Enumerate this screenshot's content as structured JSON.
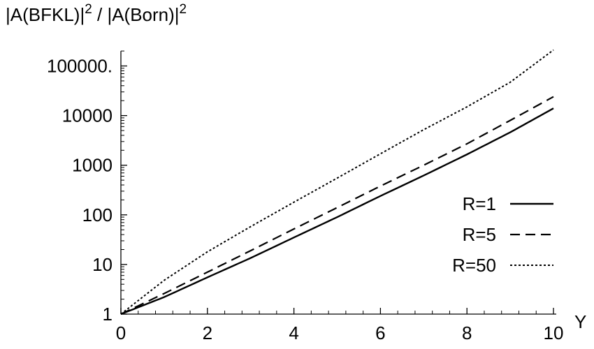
{
  "chart_data": {
    "type": "line",
    "ylabel": {
      "part1": "|A(BFKL)|",
      "exp1": "2",
      "part2": " / |A(Born)|",
      "exp2": "2"
    },
    "xlabel": "Y",
    "x_scale": "linear",
    "y_scale": "log",
    "xlim": [
      0,
      10
    ],
    "ylim": [
      1,
      200000
    ],
    "x_ticks": [
      {
        "value": 0,
        "label": "0"
      },
      {
        "value": 2,
        "label": "2"
      },
      {
        "value": 4,
        "label": "4"
      },
      {
        "value": 6,
        "label": "6"
      },
      {
        "value": 8,
        "label": "8"
      },
      {
        "value": 10,
        "label": "10"
      }
    ],
    "y_ticks": [
      {
        "value": 1,
        "label": "1"
      },
      {
        "value": 10,
        "label": "10"
      },
      {
        "value": 100,
        "label": "100"
      },
      {
        "value": 1000,
        "label": "1000"
      },
      {
        "value": 10000,
        "label": "10000"
      },
      {
        "value": 100000,
        "label": "100000."
      }
    ],
    "grid": false,
    "legend_position": "right",
    "x": [
      0,
      1,
      2,
      3,
      4,
      5,
      6,
      7,
      8,
      9,
      10
    ],
    "series": [
      {
        "name": "R=1",
        "style": "solid",
        "values": [
          1,
          2.2,
          5.5,
          13.5,
          35,
          90,
          240,
          620,
          1650,
          4600,
          14000
        ]
      },
      {
        "name": "R=5",
        "style": "dashed",
        "values": [
          1,
          2.6,
          7.0,
          19,
          52,
          140,
          380,
          1000,
          2700,
          8000,
          24000
        ]
      },
      {
        "name": "R=50",
        "style": "dotted",
        "values": [
          1,
          4.8,
          18,
          58,
          180,
          550,
          1700,
          5200,
          15000,
          47000,
          210000
        ]
      }
    ]
  }
}
